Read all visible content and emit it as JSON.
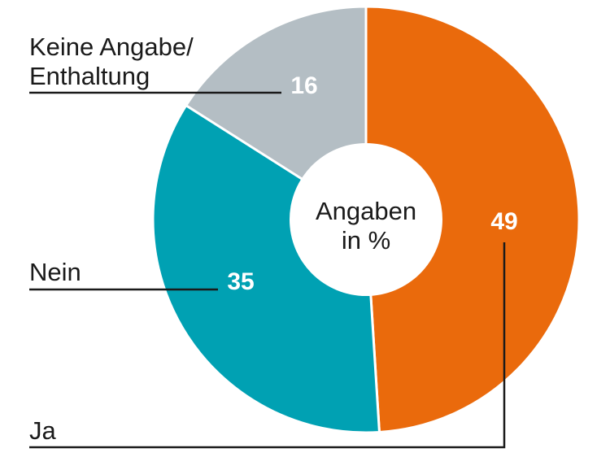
{
  "chart_data": {
    "type": "pie",
    "center_label": [
      "Angaben",
      "in %"
    ],
    "slices": [
      {
        "label": "Ja",
        "value": 49,
        "color": "#ea6a0c"
      },
      {
        "label": "Nein",
        "value": 35,
        "color": "#00a1b3"
      },
      {
        "label_lines": [
          "Keine Angabe/",
          "Enthaltung"
        ],
        "value": 16,
        "color": "#b4bec4"
      }
    ]
  }
}
